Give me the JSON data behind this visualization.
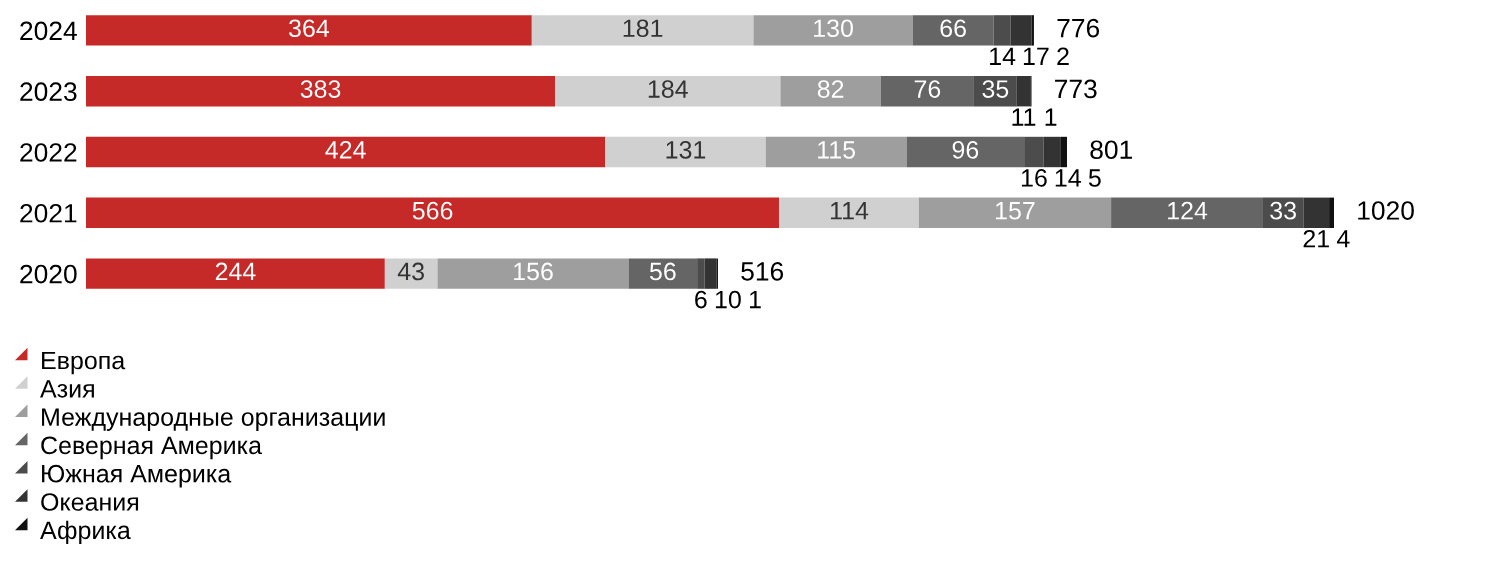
{
  "chart_data": {
    "type": "bar",
    "orientation": "horizontal",
    "stacked": true,
    "data_labels": true,
    "legend": "bottom left",
    "grid": false,
    "categories": [
      "2024",
      "2023",
      "2022",
      "2021",
      "2020"
    ],
    "series": [
      {
        "name": "Европа",
        "color": "#c62a28",
        "values": [
          364,
          383,
          424,
          566,
          244
        ]
      },
      {
        "name": "Азия",
        "color": "#d0d0d0",
        "values": [
          181,
          184,
          131,
          114,
          43
        ]
      },
      {
        "name": "Международные организации",
        "color": "#9e9e9e",
        "values": [
          130,
          82,
          115,
          157,
          156
        ]
      },
      {
        "name": "Северная Америка",
        "color": "#656565",
        "values": [
          66,
          76,
          96,
          124,
          56
        ]
      },
      {
        "name": "Южная Америка",
        "color": "#4c4c4c",
        "values": [
          14,
          35,
          16,
          33,
          6
        ]
      },
      {
        "name": "Океания",
        "color": "#333333",
        "values": [
          17,
          11,
          14,
          21,
          10
        ]
      },
      {
        "name": "Африка",
        "color": "#111111",
        "values": [
          2,
          1,
          5,
          4,
          1
        ]
      }
    ],
    "totals": [
      "776",
      "773",
      "801",
      "1020",
      "516"
    ]
  }
}
